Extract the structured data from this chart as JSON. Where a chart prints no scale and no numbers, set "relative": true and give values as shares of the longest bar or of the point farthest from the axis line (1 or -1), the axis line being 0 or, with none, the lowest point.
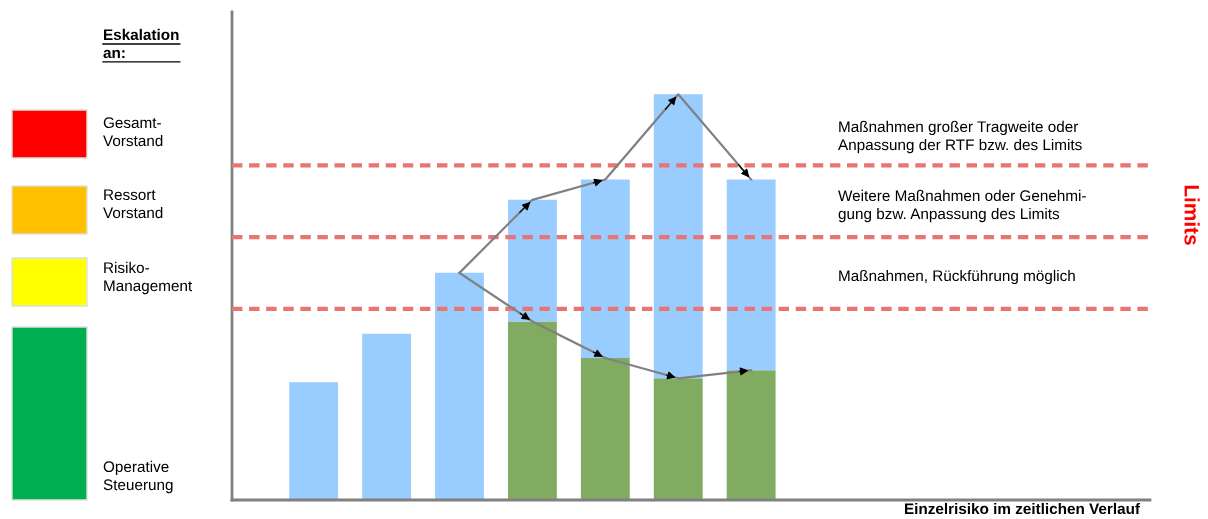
{
  "chart_data": [
    {
      "type": "bar",
      "relative": true,
      "stacked": true,
      "categories": [
        null,
        null,
        null,
        null,
        null,
        null,
        null
      ],
      "series": [
        {
          "color": "#80ab60",
          "values": [
            null,
            null,
            null,
            0.44,
            0.35,
            0.3,
            0.32
          ]
        },
        {
          "color": "#99ccff",
          "values": [
            0.29,
            0.41,
            0.56,
            0.3,
            0.44,
            0.7,
            0.47
          ]
        }
      ],
      "ref_lines": [
        {
          "axis": "y",
          "value": 0.825,
          "color": "#e87474",
          "line_style": "dashed"
        },
        {
          "axis": "y",
          "value": 0.648,
          "color": "#e87474",
          "line_style": "dashed"
        },
        {
          "axis": "y",
          "value": 0.471,
          "color": "#e87474",
          "line_style": "dashed"
        }
      ],
      "annotations": [
        "Eskalation\nan:",
        "Gesamt-\nVorstand",
        "Ressort\nVorstand",
        "Risiko-\nManagement",
        "Operative\nSteuerung",
        "Maßnahmen großer Tragweite oder\nAnpassung der RTF bzw. des Limits",
        "Weitere Maßnahmen oder Genehmi-\ngung bzw. Anpassung des Limits",
        "Maßnahmen, Rückführung möglich",
        "Limits",
        "Einzelrisiko im zeitlichen Verlauf"
      ]
    },
    {
      "type": "line",
      "relative": true,
      "marker": "none",
      "line_style": "solid",
      "categories": [
        null,
        null,
        null,
        null,
        null,
        null,
        null
      ],
      "series": [
        {
          "color": "#808080",
          "values": [
            null,
            null,
            0.56,
            0.74,
            0.79,
            1,
            0.79
          ]
        },
        {
          "color": "#808080",
          "values": [
            null,
            null,
            0.56,
            0.44,
            0.35,
            0.3,
            0.32
          ]
        }
      ]
    }
  ]
}
